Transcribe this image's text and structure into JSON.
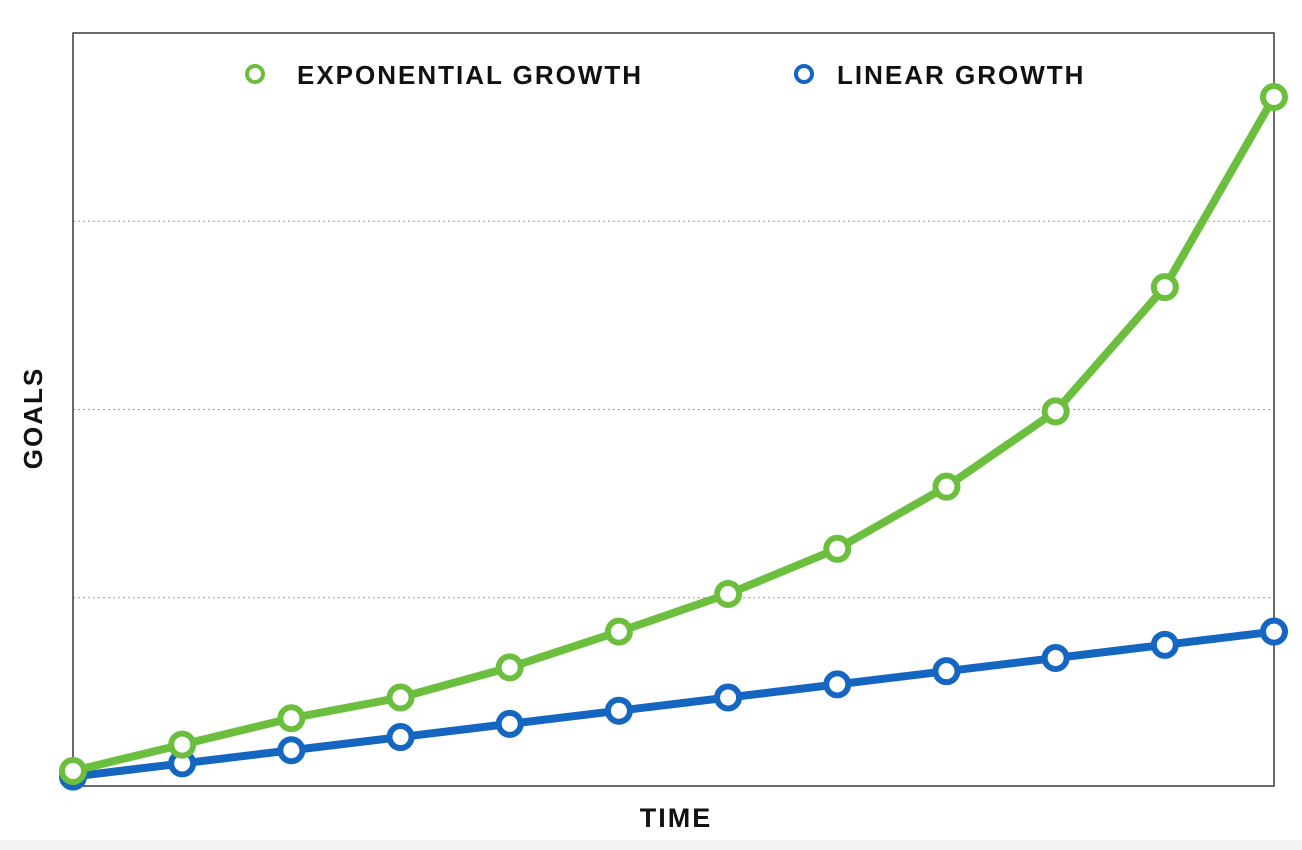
{
  "chart_data": {
    "type": "line",
    "xlabel": "TIME",
    "ylabel": "GOALS",
    "x": [
      0,
      1,
      2,
      3,
      4,
      5,
      6,
      7,
      8,
      9,
      10,
      11
    ],
    "xlim": [
      0,
      11
    ],
    "ylim": [
      0,
      4
    ],
    "grid": true,
    "legend_position": "top",
    "series": [
      {
        "name": "EXPONENTIAL GROWTH",
        "color": "#6cbf3e",
        "values": [
          0.08,
          0.22,
          0.36,
          0.47,
          0.63,
          0.82,
          1.02,
          1.26,
          1.59,
          1.99,
          2.65,
          3.66
        ]
      },
      {
        "name": "LINEAR GROWTH",
        "color": "#1566c0",
        "values": [
          0.05,
          0.12,
          0.19,
          0.26,
          0.33,
          0.4,
          0.47,
          0.54,
          0.61,
          0.68,
          0.75,
          0.82
        ]
      }
    ]
  }
}
